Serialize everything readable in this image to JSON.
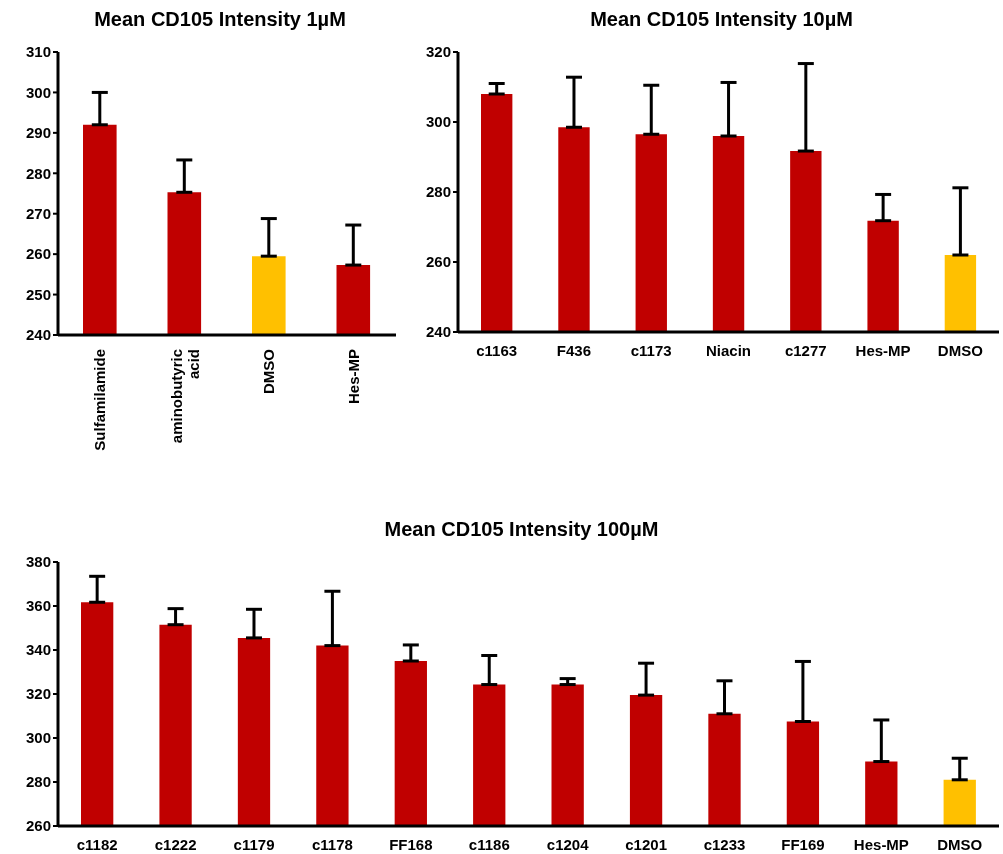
{
  "chart_data": [
    {
      "type": "bar",
      "title": "Mean CD105 Intensity 1µM",
      "categories": [
        "Sulfamilamide",
        "aminobutyric acid",
        "DMSO",
        "Hes-MP"
      ],
      "values": [
        292,
        275.3,
        259.5,
        257.3
      ],
      "colors": [
        "#c00000",
        "#c00000",
        "#ffc000",
        "#c00000"
      ],
      "errors": [
        [
          292,
          300
        ],
        [
          275.3,
          283.3
        ],
        [
          259.5,
          268.8
        ],
        [
          257.3,
          267.2
        ]
      ],
      "ylim": [
        240,
        310
      ],
      "yticks": [
        240,
        250,
        260,
        270,
        280,
        290,
        300,
        310
      ],
      "grid": false
    },
    {
      "type": "bar",
      "title": "Mean CD105 Intensity 10µM",
      "categories": [
        "c1163",
        "F436",
        "c1173",
        "Niacin",
        "c1277",
        "Hes-MP",
        "DMSO"
      ],
      "values": [
        308,
        298.5,
        296.5,
        296,
        291.7,
        271.8,
        262
      ],
      "colors": [
        "#c00000",
        "#c00000",
        "#c00000",
        "#c00000",
        "#c00000",
        "#c00000",
        "#ffc000"
      ],
      "errors": [
        [
          308,
          311
        ],
        [
          298.5,
          312.8
        ],
        [
          296.5,
          310.5
        ],
        [
          296,
          311.3
        ],
        [
          291.7,
          316.7
        ],
        [
          271.8,
          279.3
        ],
        [
          262,
          281.2
        ]
      ],
      "ylim": [
        240,
        320
      ],
      "yticks": [
        240,
        260,
        280,
        300,
        320
      ],
      "grid": false
    },
    {
      "type": "bar",
      "title": "Mean CD105 Intensity 100µM",
      "categories": [
        "c1182",
        "c1222",
        "c1179",
        "c1178",
        "FF168",
        "c1186",
        "c1204",
        "c1201",
        "c1233",
        "FF169",
        "Hes-MP",
        "DMSO"
      ],
      "values": [
        361.7,
        351.5,
        345.5,
        342,
        335,
        324.3,
        324.3,
        319.5,
        311,
        307.5,
        289.3,
        281
      ],
      "colors": [
        "#c00000",
        "#c00000",
        "#c00000",
        "#c00000",
        "#c00000",
        "#c00000",
        "#c00000",
        "#c00000",
        "#c00000",
        "#c00000",
        "#c00000",
        "#ffc000"
      ],
      "errors": [
        [
          361.7,
          373.5
        ],
        [
          351.5,
          358.8
        ],
        [
          345.5,
          358.5
        ],
        [
          342,
          366.7
        ],
        [
          335,
          342.3
        ],
        [
          324.3,
          337.5
        ],
        [
          324.3,
          327
        ],
        [
          319.5,
          334
        ],
        [
          311,
          326
        ],
        [
          307.5,
          334.8
        ],
        [
          289.3,
          308.2
        ],
        [
          281,
          290.8
        ]
      ],
      "ylim": [
        260,
        380
      ],
      "yticks": [
        260,
        280,
        300,
        320,
        340,
        360,
        380
      ],
      "grid": false
    }
  ]
}
